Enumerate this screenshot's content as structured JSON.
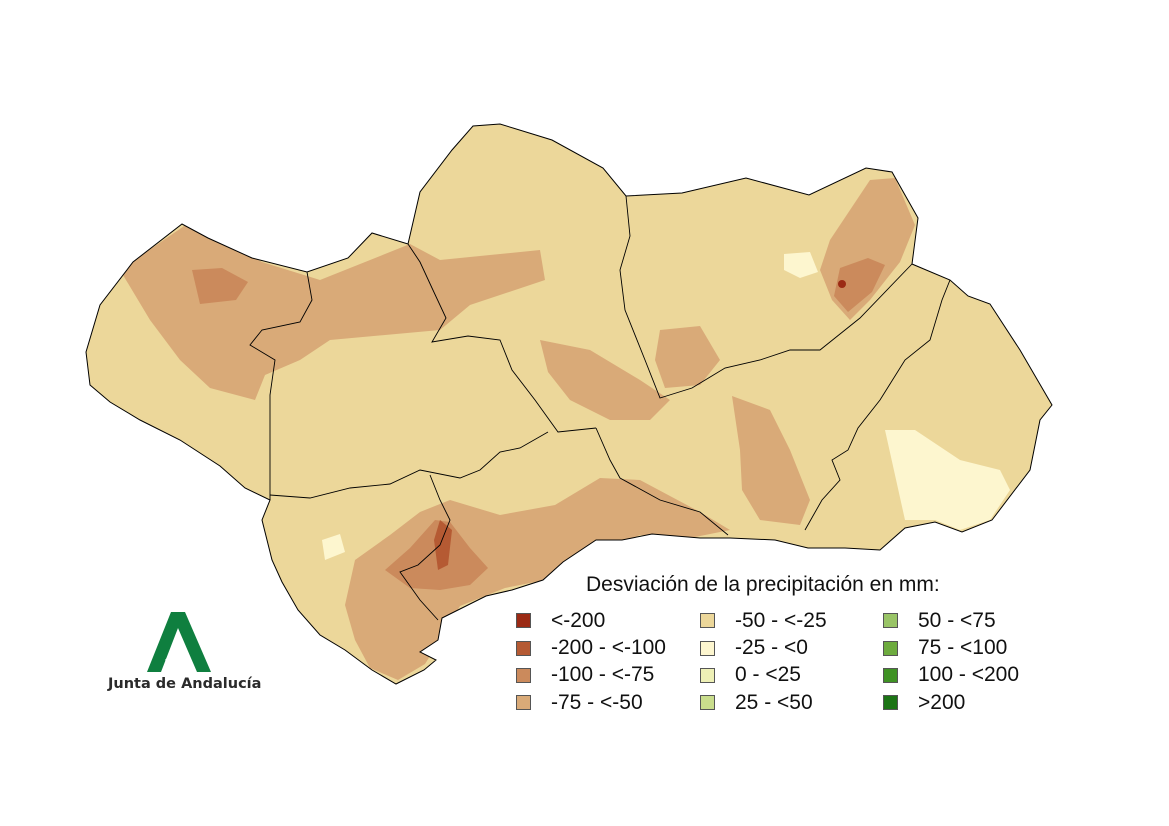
{
  "legend": {
    "title": "Desviación de la precipitación en mm:",
    "classes": [
      {
        "label": "<-200",
        "color": "#9b2a14"
      },
      {
        "label": "-200 - <-100",
        "color": "#b55a33"
      },
      {
        "label": "-100 - <-75",
        "color": "#cb8a5c"
      },
      {
        "label": "-75 - <-50",
        "color": "#d9aa78"
      },
      {
        "label": "-50 - <-25",
        "color": "#ecd79a"
      },
      {
        "label": "-25 - <0",
        "color": "#fdf6cf"
      },
      {
        "label": "0 - <25",
        "color": "#eef0b6"
      },
      {
        "label": "25 - <50",
        "color": "#c9dd8c"
      },
      {
        "label": "50 - <75",
        "color": "#99c466"
      },
      {
        "label": "75 - <100",
        "color": "#6dab3e"
      },
      {
        "label": "100 - <200",
        "color": "#3f9224"
      },
      {
        "label": ">200",
        "color": "#1c7415"
      }
    ]
  },
  "logo": {
    "text": "Junta de Andalucía",
    "color": "#0f7f3f"
  },
  "map": {
    "region": "Andalucía",
    "province_outlines": true
  }
}
